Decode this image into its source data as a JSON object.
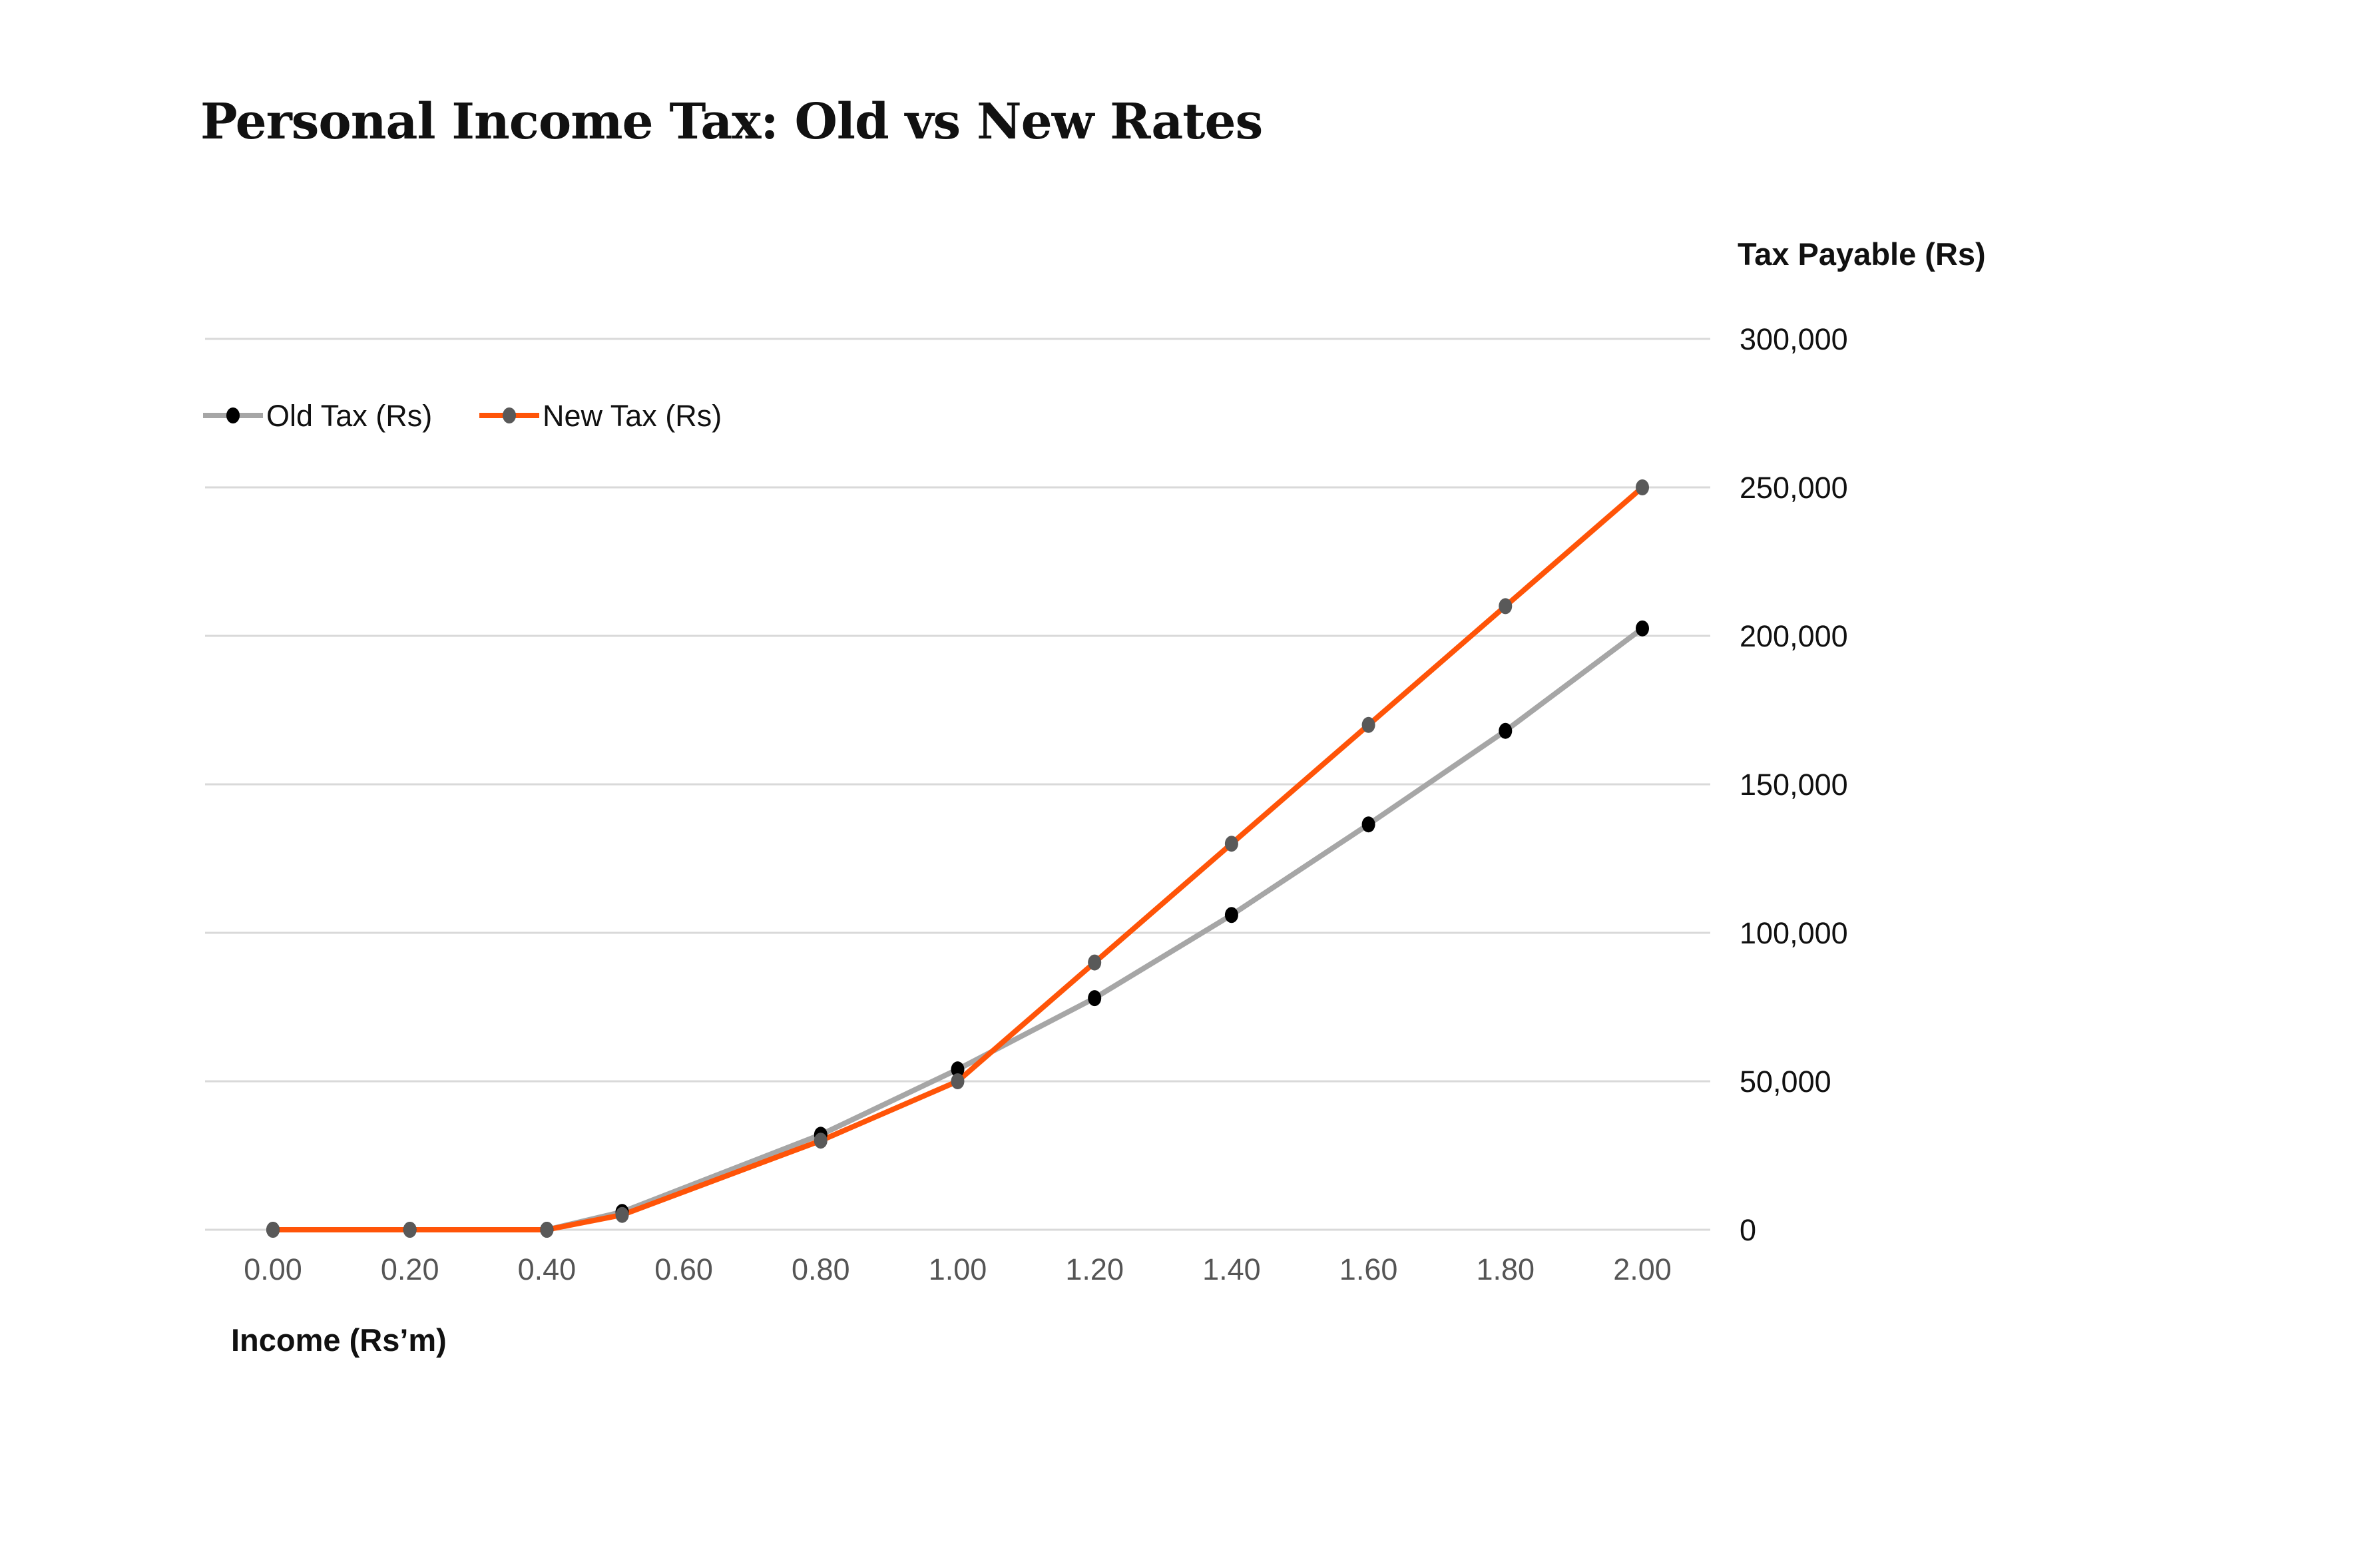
{
  "chart_data": {
    "type": "line",
    "title": "Personal Income Tax: Old vs New Rates",
    "xlabel": "Income (Rs’m)",
    "ylabel": "Tax Payable (Rs)",
    "xlim": [
      0,
      2
    ],
    "ylim": [
      0,
      300000
    ],
    "x_ticks": [
      "0.00",
      "0.20",
      "0.40",
      "0.60",
      "0.80",
      "1.00",
      "1.20",
      "1.40",
      "1.60",
      "1.80",
      "2.00"
    ],
    "y_ticks": [
      "0",
      "50,000",
      "100,000",
      "150,000",
      "200,000",
      "250,000",
      "300,000"
    ],
    "y_tick_values": [
      0,
      50000,
      100000,
      150000,
      200000,
      250000,
      300000
    ],
    "grid": "horizontal",
    "legend_placement": "top-left",
    "x": [
      0,
      0.2,
      0.4,
      0.51,
      0.8,
      1.0,
      1.2,
      1.4,
      1.6,
      1.8,
      2.0
    ],
    "series": [
      {
        "name": "Old Tax (Rs)",
        "color": "#a6a6a6",
        "marker": "#000000",
        "values": [
          0,
          0,
          0,
          6000,
          32000,
          54000,
          78000,
          106000,
          136500,
          168000,
          202500
        ]
      },
      {
        "name": "New Tax (Rs)",
        "color": "#ff5408",
        "marker": "#595959",
        "values": [
          0,
          0,
          0,
          5000,
          30000,
          50000,
          90000,
          130000,
          170000,
          210000,
          250000
        ]
      }
    ]
  }
}
